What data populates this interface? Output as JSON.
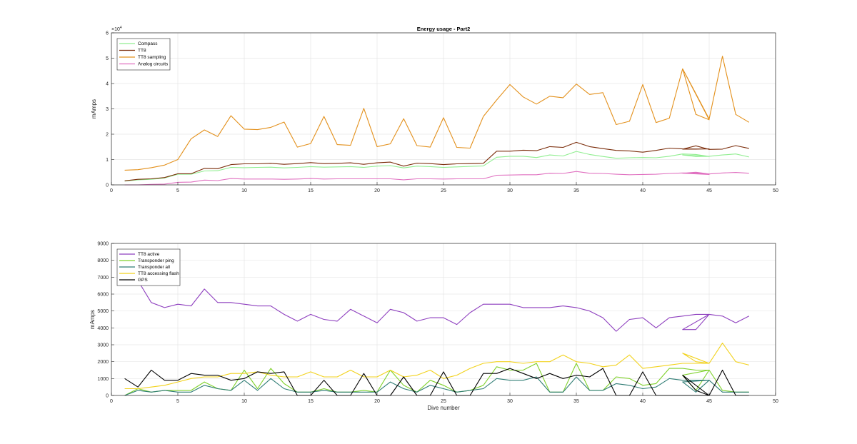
{
  "chart_data": [
    {
      "type": "line",
      "title": "Energy usage - Part2",
      "xlabel": "",
      "ylabel": "mAmps",
      "xlim": [
        0,
        50
      ],
      "ylim": [
        0,
        60000
      ],
      "xticks": [
        0,
        5,
        10,
        15,
        20,
        25,
        30,
        35,
        40,
        45,
        50
      ],
      "yticks": [
        0,
        10000,
        20000,
        30000,
        40000,
        50000,
        60000
      ],
      "ytick_labels": [
        "0",
        "1",
        "2",
        "3",
        "4",
        "5",
        "6"
      ],
      "exponent_label": "×10",
      "exponent_power": "4",
      "grid": true,
      "legend_position": "top-left",
      "series": [
        {
          "name": "Compass",
          "color": "#90ee90",
          "x": [
            1,
            2,
            3,
            4,
            5,
            6,
            7,
            8,
            9,
            10,
            11,
            12,
            13,
            14,
            15,
            16,
            17,
            18,
            19,
            20,
            21,
            22,
            23,
            24,
            25,
            26,
            27,
            28,
            29,
            30,
            31,
            32,
            33,
            34,
            35,
            36,
            37,
            38,
            39,
            40,
            41,
            42,
            43,
            44,
            45,
            43,
            44,
            45,
            46,
            47,
            48
          ],
          "y": [
            1500,
            2000,
            2200,
            2700,
            4200,
            4200,
            5500,
            5600,
            6900,
            6800,
            6900,
            7000,
            6700,
            6900,
            7200,
            7000,
            7100,
            7200,
            6900,
            7400,
            7600,
            6700,
            7400,
            7200,
            6900,
            7100,
            7300,
            7500,
            10900,
            11300,
            11300,
            10800,
            11800,
            11400,
            13200,
            12000,
            11200,
            10500,
            10700,
            10800,
            10700,
            11300,
            12200,
            12000,
            11200,
            11800,
            11200,
            11300,
            11800,
            12200,
            11000
          ]
        },
        {
          "name": "TT8",
          "color": "#7b2d0b",
          "x": [
            1,
            2,
            3,
            4,
            5,
            6,
            7,
            8,
            9,
            10,
            11,
            12,
            13,
            14,
            15,
            16,
            17,
            18,
            19,
            20,
            21,
            22,
            23,
            24,
            25,
            26,
            27,
            28,
            29,
            30,
            31,
            32,
            33,
            34,
            35,
            36,
            37,
            38,
            39,
            40,
            41,
            42,
            43,
            44,
            45,
            43,
            44,
            45,
            46,
            47,
            48
          ],
          "y": [
            1600,
            2200,
            2400,
            2900,
            4400,
            4400,
            6500,
            6400,
            8000,
            8300,
            8300,
            8500,
            8100,
            8400,
            8800,
            8400,
            8500,
            8700,
            8100,
            8700,
            9000,
            7400,
            8600,
            8400,
            8000,
            8300,
            8400,
            8500,
            13300,
            13300,
            13700,
            13500,
            15100,
            14800,
            16800,
            15100,
            14300,
            13600,
            13400,
            12900,
            13600,
            14500,
            14200,
            14100,
            14200,
            14100,
            15400,
            14000,
            14100,
            15500,
            14400
          ]
        },
        {
          "name": "TT8 sampling",
          "color": "#e3901b",
          "x": [
            1,
            2,
            3,
            4,
            5,
            6,
            7,
            8,
            9,
            10,
            11,
            12,
            13,
            14,
            15,
            16,
            17,
            18,
            19,
            20,
            21,
            22,
            23,
            24,
            25,
            26,
            27,
            28,
            29,
            30,
            31,
            32,
            33,
            34,
            35,
            36,
            37,
            38,
            39,
            40,
            41,
            42,
            43,
            44,
            45,
            43,
            44,
            45,
            46,
            47,
            48
          ],
          "y": [
            5800,
            6000,
            6800,
            7800,
            10000,
            18200,
            21700,
            19100,
            27300,
            22000,
            21800,
            22700,
            24800,
            14900,
            16300,
            27000,
            15900,
            15600,
            30200,
            15100,
            16200,
            26100,
            15500,
            14900,
            26500,
            14800,
            14500,
            27000,
            33500,
            39600,
            34700,
            31900,
            35000,
            34400,
            39800,
            35700,
            36400,
            23800,
            25100,
            39600,
            24600,
            26300,
            45800,
            27800,
            25700,
            45800,
            36000,
            26000,
            50800,
            27800,
            24700
          ]
        },
        {
          "name": "Analog circuits",
          "color": "#e070c0",
          "x": [
            1,
            2,
            3,
            4,
            5,
            6,
            7,
            8,
            9,
            10,
            11,
            12,
            13,
            14,
            15,
            16,
            17,
            18,
            19,
            20,
            21,
            22,
            23,
            24,
            25,
            26,
            27,
            28,
            29,
            30,
            31,
            32,
            33,
            34,
            35,
            36,
            37,
            38,
            39,
            40,
            41,
            42,
            43,
            44,
            45,
            43,
            44,
            45,
            46,
            47,
            48
          ],
          "y": [
            0,
            0,
            200,
            300,
            1000,
            1100,
            1900,
            1700,
            2500,
            2300,
            2300,
            2300,
            2200,
            2300,
            2500,
            2300,
            2400,
            2400,
            2400,
            2400,
            2400,
            2000,
            2400,
            2400,
            2300,
            2400,
            2400,
            2400,
            3800,
            3900,
            4000,
            4000,
            4600,
            4500,
            5300,
            4600,
            4500,
            4200,
            4000,
            4100,
            4200,
            4500,
            4700,
            4700,
            4100,
            4600,
            5000,
            4300,
            4700,
            4900,
            4600
          ]
        }
      ]
    },
    {
      "type": "line",
      "title": "",
      "xlabel": "Dive number",
      "ylabel": "mAmps",
      "xlim": [
        0,
        50
      ],
      "ylim": [
        0,
        9000
      ],
      "xticks": [
        0,
        5,
        10,
        15,
        20,
        25,
        30,
        35,
        40,
        45,
        50
      ],
      "yticks": [
        0,
        1000,
        2000,
        3000,
        4000,
        5000,
        6000,
        7000,
        8000,
        9000
      ],
      "ytick_labels": [
        "0",
        "1000",
        "2000",
        "3000",
        "4000",
        "5000",
        "6000",
        "7000",
        "8000",
        "9000"
      ],
      "grid": true,
      "legend_position": "top-left",
      "series": [
        {
          "name": "TT8 active",
          "color": "#8e3fbf",
          "x": [
            2,
            3,
            4,
            5,
            6,
            7,
            8,
            9,
            10,
            11,
            12,
            13,
            14,
            15,
            16,
            17,
            18,
            19,
            20,
            21,
            22,
            23,
            24,
            25,
            26,
            27,
            28,
            29,
            30,
            31,
            32,
            33,
            34,
            35,
            36,
            37,
            38,
            39,
            40,
            41,
            42,
            43,
            44,
            45,
            43,
            44,
            45,
            46,
            47,
            48
          ],
          "y": [
            6800,
            5500,
            5200,
            5400,
            5300,
            6300,
            5500,
            5500,
            5400,
            5300,
            5300,
            4800,
            4400,
            4800,
            4500,
            4400,
            5100,
            4700,
            4300,
            5100,
            4900,
            4400,
            4600,
            4600,
            4200,
            4900,
            5400,
            5400,
            5400,
            5200,
            5200,
            5200,
            5300,
            5200,
            5000,
            4600,
            3800,
            4500,
            4600,
            4000,
            4600,
            4700,
            4800,
            4800,
            3900,
            3900,
            4800,
            4700,
            4300,
            4700
          ]
        },
        {
          "name": "Transponder ping",
          "color": "#7fd12b",
          "x": [
            1,
            2,
            3,
            4,
            5,
            6,
            7,
            8,
            9,
            10,
            11,
            12,
            13,
            14,
            15,
            16,
            17,
            18,
            19,
            20,
            21,
            22,
            23,
            24,
            25,
            26,
            27,
            28,
            29,
            30,
            31,
            32,
            33,
            34,
            35,
            36,
            37,
            38,
            39,
            40,
            41,
            42,
            43,
            44,
            45,
            43,
            44,
            45,
            46,
            47,
            48
          ],
          "y": [
            0,
            400,
            200,
            300,
            300,
            300,
            800,
            400,
            300,
            1500,
            400,
            1600,
            700,
            200,
            200,
            400,
            200,
            200,
            300,
            200,
            1500,
            600,
            200,
            900,
            600,
            200,
            300,
            600,
            1700,
            1500,
            1500,
            1900,
            200,
            200,
            1900,
            300,
            300,
            1100,
            1000,
            600,
            700,
            1600,
            1600,
            1500,
            1500,
            1200,
            300,
            1500,
            300,
            200,
            200
          ]
        },
        {
          "name": "Transponder all",
          "color": "#2f7c74",
          "x": [
            1,
            2,
            3,
            4,
            5,
            6,
            7,
            8,
            9,
            10,
            11,
            12,
            13,
            14,
            15,
            16,
            17,
            18,
            19,
            20,
            21,
            22,
            23,
            24,
            25,
            26,
            27,
            28,
            29,
            30,
            31,
            32,
            33,
            34,
            35,
            36,
            37,
            38,
            39,
            40,
            41,
            42,
            43,
            44,
            45,
            43,
            44,
            45,
            46,
            47,
            48
          ],
          "y": [
            0,
            300,
            200,
            300,
            200,
            200,
            600,
            400,
            300,
            900,
            300,
            1000,
            400,
            200,
            200,
            300,
            200,
            200,
            200,
            200,
            800,
            400,
            200,
            600,
            400,
            200,
            300,
            400,
            1000,
            900,
            900,
            1100,
            200,
            200,
            1100,
            300,
            300,
            700,
            600,
            400,
            500,
            1000,
            900,
            900,
            900,
            800,
            200,
            900,
            200,
            200,
            200
          ]
        },
        {
          "name": "TT8 accessing flash",
          "color": "#f2d21c",
          "x": [
            1,
            2,
            3,
            4,
            5,
            6,
            7,
            8,
            9,
            10,
            11,
            12,
            13,
            14,
            15,
            16,
            17,
            18,
            19,
            20,
            21,
            22,
            23,
            24,
            25,
            26,
            27,
            28,
            29,
            30,
            31,
            32,
            33,
            34,
            35,
            36,
            37,
            38,
            39,
            40,
            41,
            42,
            43,
            44,
            45,
            43,
            44,
            45,
            46,
            47,
            48
          ],
          "y": [
            400,
            400,
            500,
            600,
            800,
            1000,
            1100,
            1100,
            1300,
            1300,
            1400,
            1200,
            1100,
            1100,
            1400,
            1100,
            1100,
            1500,
            1100,
            1100,
            1500,
            1100,
            1200,
            1500,
            1000,
            1200,
            1600,
            1900,
            2000,
            2000,
            1900,
            2000,
            2000,
            2400,
            2000,
            1900,
            1700,
            1800,
            2400,
            1600,
            1700,
            1800,
            1900,
            1900,
            1900,
            2500,
            2000,
            1900,
            3100,
            2000,
            1800
          ]
        },
        {
          "name": "GPS",
          "color": "#000000",
          "x": [
            1,
            2,
            3,
            4,
            5,
            6,
            7,
            8,
            9,
            10,
            11,
            12,
            13,
            14,
            15,
            16,
            17,
            18,
            19,
            20,
            21,
            22,
            23,
            24,
            25,
            26,
            27,
            28,
            29,
            30,
            31,
            32,
            33,
            34,
            35,
            36,
            37,
            38,
            39,
            40,
            41,
            42,
            43,
            44,
            45,
            43,
            44,
            45,
            46,
            47,
            48
          ],
          "y": [
            1000,
            500,
            1500,
            900,
            900,
            1300,
            1200,
            1200,
            900,
            1000,
            1400,
            1300,
            1400,
            0,
            0,
            900,
            0,
            0,
            1300,
            0,
            0,
            1100,
            0,
            0,
            1400,
            0,
            0,
            1300,
            1300,
            1600,
            1300,
            1000,
            1300,
            1000,
            1200,
            1100,
            1600,
            0,
            0,
            1400,
            0,
            0,
            0,
            0,
            0,
            1200,
            300,
            0,
            1500,
            0,
            0
          ]
        }
      ]
    }
  ]
}
